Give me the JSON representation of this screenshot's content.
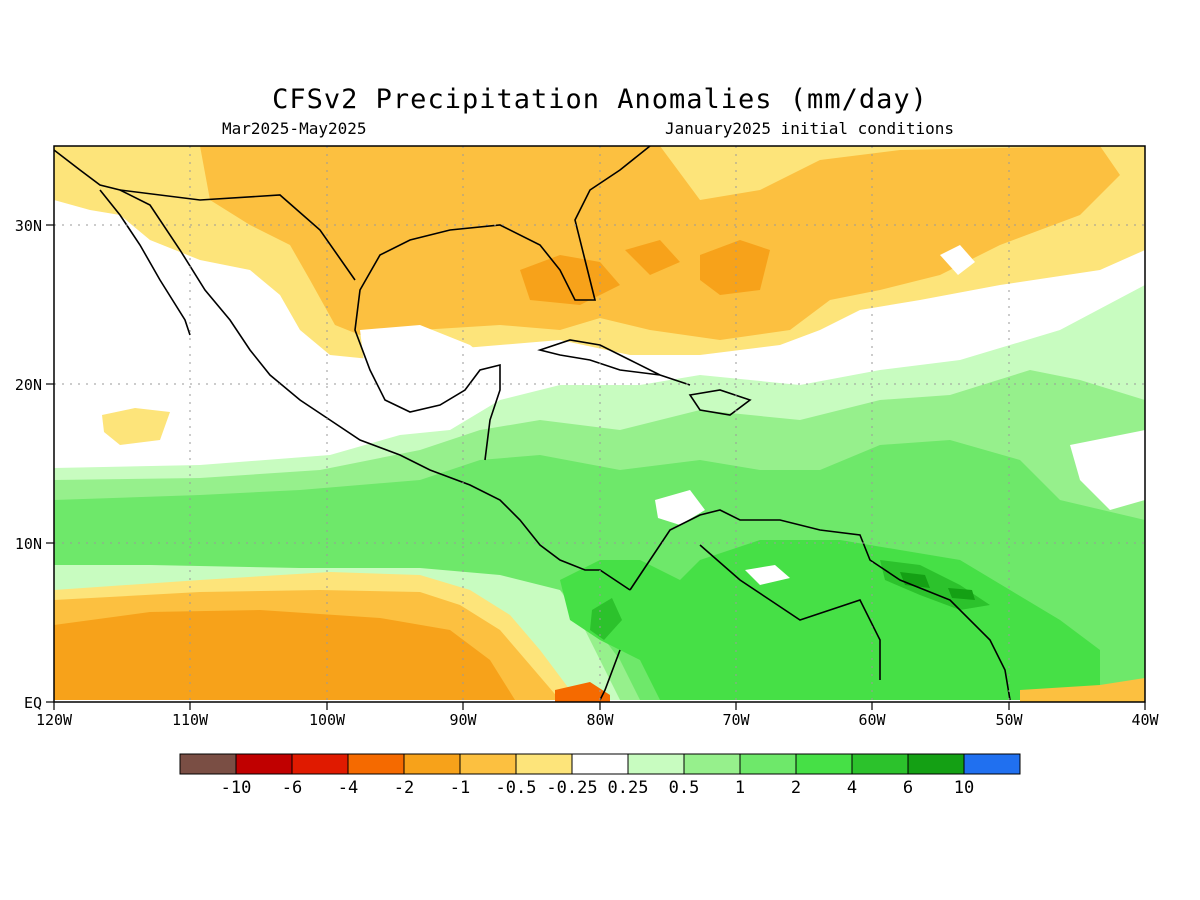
{
  "figure": {
    "title": "CFSv2 Precipitation Anomalies (mm/day)",
    "subtitle_left": "Mar2025-May2025",
    "subtitle_right": "January2025 initial conditions"
  },
  "map": {
    "region": "Central America, Caribbean, Gulf of Mexico, northern South America",
    "lon_range": [
      -120,
      -40
    ],
    "lat_range": [
      0,
      35
    ],
    "x_ticks": [
      "120W",
      "110W",
      "100W",
      "90W",
      "80W",
      "70W",
      "60W",
      "50W",
      "40W"
    ],
    "y_ticks": [
      "EQ",
      "10N",
      "20N",
      "30N"
    ],
    "grid": "dotted"
  },
  "colorbar": {
    "labels": [
      "-10",
      "-6",
      "-4",
      "-2",
      "-1",
      "-0.5",
      "-0.25",
      "0.25",
      "0.5",
      "1",
      "2",
      "4",
      "6",
      "10"
    ],
    "colors": [
      "#7a4e44",
      "#c00000",
      "#e01a00",
      "#f56a00",
      "#f7a21a",
      "#fcc040",
      "#fde47a",
      "#ffffff",
      "#c8fcc0",
      "#96f08c",
      "#6ee86a",
      "#46e046",
      "#2cc22c",
      "#14a014",
      "#2070f0"
    ]
  }
}
